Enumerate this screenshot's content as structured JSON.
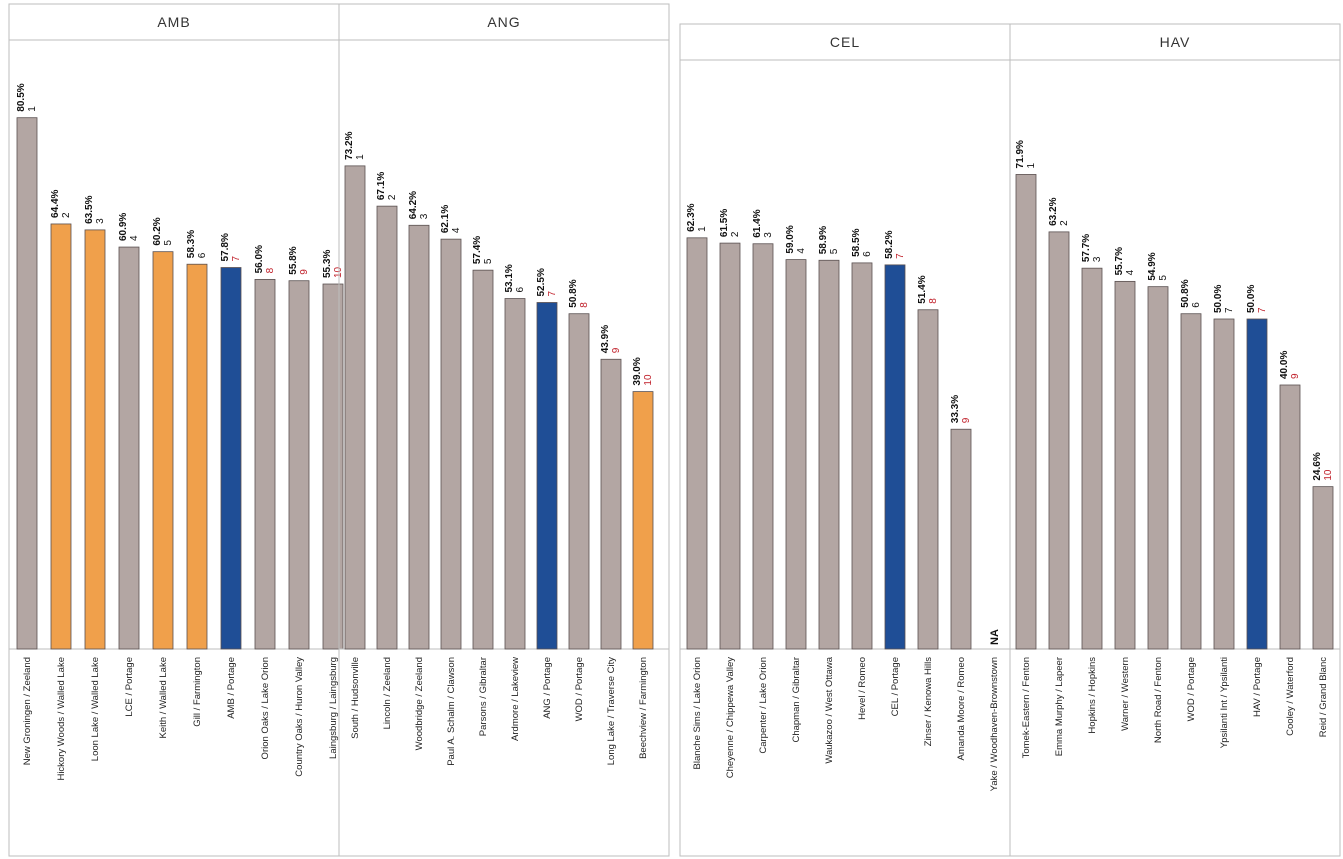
{
  "chart_data": [
    {
      "type": "bar",
      "title": "AMB",
      "categories": [
        "New Groningen / Zeeland",
        "Hickory Woods / Walled Lake",
        "Loon Lake / Walled Lake",
        "LCE / Portage",
        "Keith / Walled Lake",
        "Gill / Farmington",
        "AMB / Portage",
        "Orion Oaks / Lake Orion",
        "Country Oaks / Huron Valley",
        "Laingsburg / Laingsburg"
      ],
      "values": [
        80.5,
        64.4,
        63.5,
        60.9,
        60.2,
        58.3,
        57.8,
        56.0,
        55.8,
        55.3
      ],
      "labels": [
        "80.5%",
        "64.4%",
        "63.5%",
        "60.9%",
        "60.2%",
        "58.3%",
        "57.8%",
        "56.0%",
        "55.8%",
        "55.3%"
      ],
      "ranks": [
        "1",
        "2",
        "3",
        "4",
        "5",
        "6",
        "7",
        "8",
        "9",
        "10"
      ],
      "bar_colors": [
        "#b3a6a3",
        "#f0a04b",
        "#f0a04b",
        "#b3a6a3",
        "#f0a04b",
        "#f0a04b",
        "#1f4e96",
        "#b3a6a3",
        "#b3a6a3",
        "#b3a6a3"
      ],
      "rank_colors": [
        "#111111",
        "#111111",
        "#111111",
        "#111111",
        "#111111",
        "#111111",
        "#c0202a",
        "#c0202a",
        "#c0202a",
        "#c0202a"
      ]
    },
    {
      "type": "bar",
      "title": "ANG",
      "categories": [
        "South / Hudsonville",
        "Lincoln / Zeeland",
        "Woodbridge / Zeeland",
        "Paul A. Schalm / Clawson",
        "Parsons / Gibraltar",
        "Ardmore / Lakeview",
        "ANG / Portage",
        "WOD / Portage",
        "Long Lake / Traverse City",
        "Beechview / Farmington"
      ],
      "values": [
        73.2,
        67.1,
        64.2,
        62.1,
        57.4,
        53.1,
        52.5,
        50.8,
        43.9,
        39.0
      ],
      "labels": [
        "73.2%",
        "67.1%",
        "64.2%",
        "62.1%",
        "57.4%",
        "53.1%",
        "52.5%",
        "50.8%",
        "43.9%",
        "39.0%"
      ],
      "ranks": [
        "1",
        "2",
        "3",
        "4",
        "5",
        "6",
        "7",
        "8",
        "9",
        "10"
      ],
      "bar_colors": [
        "#b3a6a3",
        "#b3a6a3",
        "#b3a6a3",
        "#b3a6a3",
        "#b3a6a3",
        "#b3a6a3",
        "#1f4e96",
        "#b3a6a3",
        "#b3a6a3",
        "#f0a04b"
      ],
      "rank_colors": [
        "#111111",
        "#111111",
        "#111111",
        "#111111",
        "#111111",
        "#111111",
        "#c0202a",
        "#c0202a",
        "#c0202a",
        "#c0202a"
      ]
    },
    {
      "type": "bar",
      "title": "CEL",
      "categories": [
        "Blanche Sims / Lake Orion",
        "Cheyenne / Chippewa Valley",
        "Carpenter / Lake Orion",
        "Chapman / Gibraltar",
        "Waukazoo / West Ottawa",
        "Hevel / Romeo",
        "CEL / Portage",
        "Zinser / Kenowa Hills",
        "Amanda Moore / Romeo",
        "Yake / Woodhaven-Brownstown"
      ],
      "values": [
        62.3,
        61.5,
        61.4,
        59.0,
        58.9,
        58.5,
        58.2,
        51.4,
        33.3,
        null
      ],
      "labels": [
        "62.3%",
        "61.5%",
        "61.4%",
        "59.0%",
        "58.9%",
        "58.5%",
        "58.2%",
        "51.4%",
        "33.3%",
        "NA"
      ],
      "ranks": [
        "1",
        "2",
        "3",
        "4",
        "5",
        "6",
        "7",
        "8",
        "9",
        ""
      ],
      "bar_colors": [
        "#b3a6a3",
        "#b3a6a3",
        "#b3a6a3",
        "#b3a6a3",
        "#b3a6a3",
        "#b3a6a3",
        "#1f4e96",
        "#b3a6a3",
        "#b3a6a3",
        "#b3a6a3"
      ],
      "rank_colors": [
        "#111111",
        "#111111",
        "#111111",
        "#111111",
        "#111111",
        "#111111",
        "#c0202a",
        "#c0202a",
        "#c0202a",
        "#c0202a"
      ]
    },
    {
      "type": "bar",
      "title": "HAV",
      "categories": [
        "Tomek-Eastern / Fenton",
        "Emma Murphy / Lapeer",
        "Hopkins / Hopkins",
        "Warner / Western",
        "North Road / Fenton",
        "WOD / Portage",
        "Ypsilanti Int / Ypsilanti",
        "HAV / Portage",
        "Cooley / Waterford",
        "Reid / Grand Blanc"
      ],
      "values": [
        71.9,
        63.2,
        57.7,
        55.7,
        54.9,
        50.8,
        50.0,
        50.0,
        40.0,
        24.6
      ],
      "labels": [
        "71.9%",
        "63.2%",
        "57.7%",
        "55.7%",
        "54.9%",
        "50.8%",
        "50.0%",
        "50.0%",
        "40.0%",
        "24.6%"
      ],
      "ranks": [
        "1",
        "2",
        "3",
        "4",
        "5",
        "6",
        "7",
        "7",
        "9",
        "10"
      ],
      "bar_colors": [
        "#b3a6a3",
        "#b3a6a3",
        "#b3a6a3",
        "#b3a6a3",
        "#b3a6a3",
        "#b3a6a3",
        "#b3a6a3",
        "#1f4e96",
        "#b3a6a3",
        "#b3a6a3"
      ],
      "rank_colors": [
        "#111111",
        "#111111",
        "#111111",
        "#111111",
        "#111111",
        "#111111",
        "#111111",
        "#c0202a",
        "#c0202a",
        "#c0202a"
      ]
    }
  ]
}
